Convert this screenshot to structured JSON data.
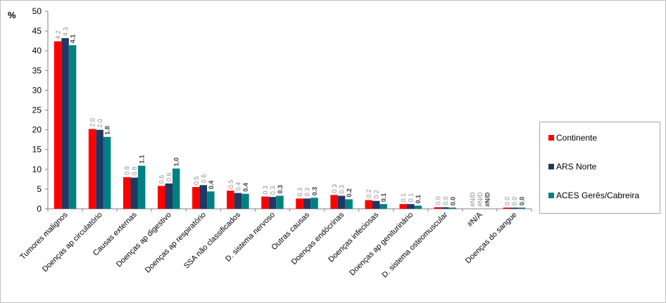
{
  "chart_data": {
    "type": "bar",
    "ylabel": "%",
    "ylim": [
      0,
      50
    ],
    "yticks": [
      0,
      5,
      10,
      15,
      20,
      25,
      30,
      35,
      40,
      45,
      50
    ],
    "grid": false,
    "legend_position": "right",
    "categories": [
      "Tumores malignos",
      "Doenças ap circulatório",
      "Causas externas",
      "Doenças ap digestivo",
      "Doenças ap respiratório",
      "SSA não classificados",
      "D. sistema nervoso",
      "Outras causas",
      "Doenças endócrinas",
      "Doenças infeciosas",
      "Doenças ap geniturinário",
      "D. sistema osteomuscular",
      "#N/A",
      "Doenças do sangue"
    ],
    "series": [
      {
        "name": "Continente",
        "color": "#ff0000",
        "values": [
          42.4,
          20.2,
          8.0,
          5.8,
          5.5,
          4.6,
          3.1,
          2.6,
          3.5,
          2.2,
          1.2,
          0.4,
          null,
          0.3
        ],
        "labels": [
          "4.2",
          "2.0",
          "0.8",
          "0.6",
          "0.5",
          "0.5",
          "0.3",
          "0.3",
          "0.3",
          "0.2",
          "0.1",
          "0.0",
          "#N/D",
          "0.0"
        ]
      },
      {
        "name": "ARS Norte",
        "color": "#1f3864",
        "values": [
          43.2,
          20.0,
          7.9,
          6.4,
          6.0,
          4.0,
          3.0,
          2.6,
          3.3,
          2.0,
          1.2,
          0.4,
          null,
          0.3
        ],
        "labels": [
          "4.3",
          "2.0",
          "0.8",
          "0.6",
          "0.6",
          "0.4",
          "0.3",
          "0.3",
          "0.3",
          "0.2",
          "0.1",
          "0.0",
          "#N/D",
          "0.0"
        ]
      },
      {
        "name": "ACES Gerês/Cabreira",
        "color": "#008080",
        "values": [
          41.4,
          18.2,
          10.9,
          10.2,
          4.4,
          3.8,
          3.3,
          2.8,
          2.4,
          1.2,
          0.8,
          0.3,
          null,
          0.3
        ],
        "labels": [
          "4.1",
          "1.8",
          "1.1",
          "1.0",
          "0.4",
          "0.4",
          "0.3",
          "0.3",
          "0.2",
          "0.1",
          "0.1",
          "0.0",
          "#N/D",
          "0.0"
        ]
      }
    ]
  }
}
